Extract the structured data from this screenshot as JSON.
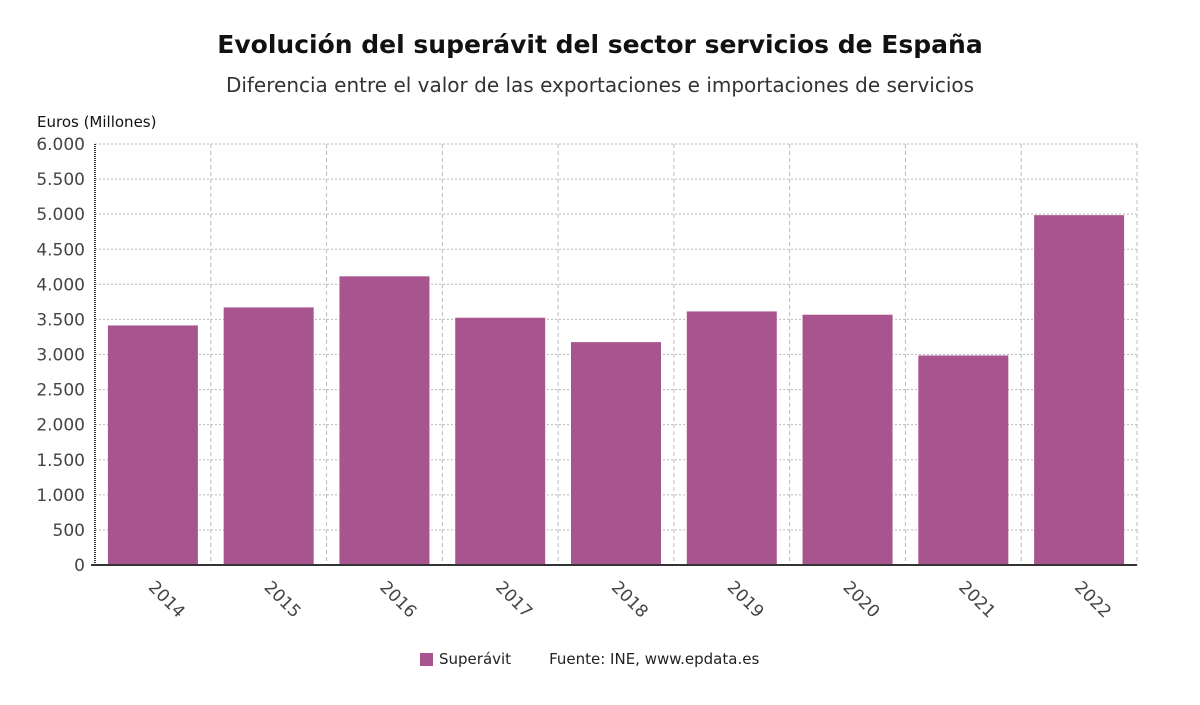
{
  "chart_data": {
    "type": "bar",
    "title": "Evolución del superávit del sector servicios de España",
    "subtitle": "Diferencia entre el valor de las exportaciones e importaciones de servicios",
    "ylabel": "Euros (Millones)",
    "xlabel": "",
    "categories": [
      "2014",
      "2015",
      "2016",
      "2017",
      "2018",
      "2019",
      "2020",
      "2021",
      "2022"
    ],
    "series": [
      {
        "name": "Superávit",
        "color": "#a8548f",
        "values": [
          3414,
          3671,
          4114,
          3524,
          3176,
          3614,
          3567,
          2986,
          4986
        ]
      }
    ],
    "ylim": [
      0,
      6000
    ],
    "yticks": [
      0,
      500,
      1000,
      1500,
      2000,
      2500,
      3000,
      3500,
      4000,
      4500,
      5000,
      5500,
      6000
    ],
    "ytick_labels": [
      "0",
      "500",
      "1.000",
      "1.500",
      "2.000",
      "2.500",
      "3.000",
      "3.500",
      "4.000",
      "4.500",
      "5.000",
      "5.500",
      "6.000"
    ],
    "grid": true,
    "legend_position": "bottom"
  },
  "source": "Fuente: INE, www.epdata.es"
}
